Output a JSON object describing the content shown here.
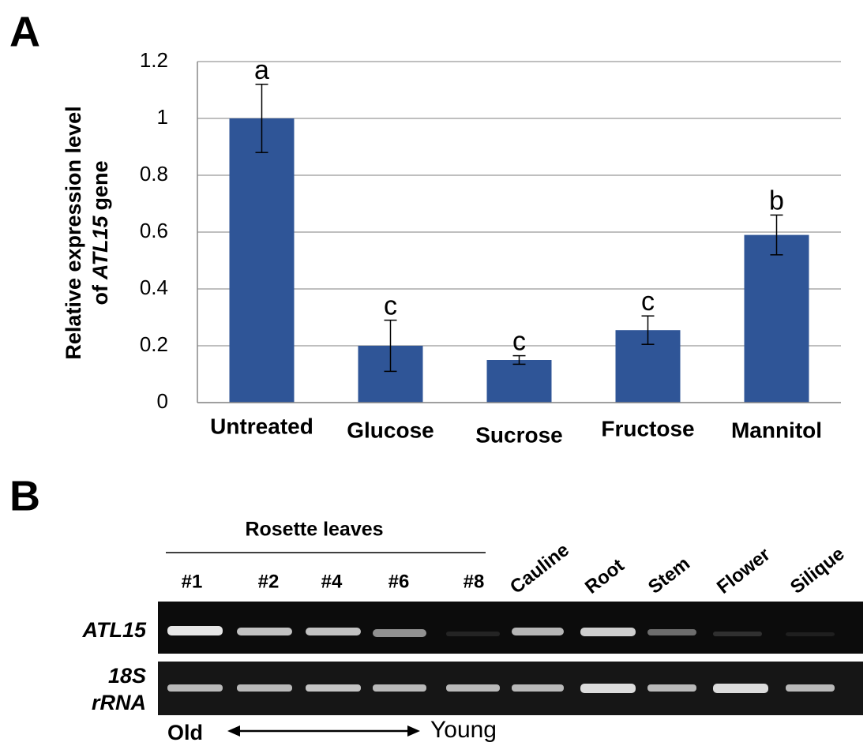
{
  "panel_labels": [
    "A",
    "B"
  ],
  "chart_data": {
    "type": "bar",
    "ylabel": {
      "line1": "Relative expression level",
      "prefix": "of",
      "gene": "ATL15",
      "suffix": "gene"
    },
    "categories": [
      "Untreated",
      "Glucose",
      "Sucrose",
      "Fructose",
      "Mannitol"
    ],
    "values": [
      1.0,
      0.2,
      0.15,
      0.255,
      0.59
    ],
    "errors": [
      0.12,
      0.09,
      0.015,
      0.05,
      0.07
    ],
    "annotations": [
      "a",
      "c",
      "c",
      "c",
      "b"
    ],
    "color": "#2f5597",
    "ylim": [
      0,
      1.2
    ],
    "yticks": [
      0,
      0.2,
      0.4,
      0.6,
      0.8,
      1,
      1.2
    ],
    "grid": true
  },
  "gel": {
    "group_label": "Rosette leaves",
    "lanes": [
      "#1",
      "#2",
      "#4",
      "#6",
      "#8",
      "Cauline",
      "Root",
      "Stem",
      "Flower",
      "Silique"
    ],
    "rows": [
      [
        "ATL15"
      ],
      [
        "18S",
        "rRNA"
      ]
    ],
    "gradient": {
      "start": "Old",
      "end": "Young"
    }
  }
}
